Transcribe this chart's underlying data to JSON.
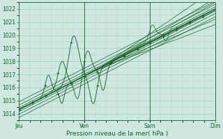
{
  "xlabel": "Pression niveau de la mer( hPa )",
  "ylim": [
    1013.5,
    1022.5
  ],
  "yticks": [
    1014,
    1015,
    1016,
    1017,
    1018,
    1019,
    1020,
    1021,
    1022
  ],
  "xtick_labels": [
    "Jeu",
    "Ven",
    "Sam",
    "Dim"
  ],
  "xtick_positions": [
    0.0,
    0.333,
    0.667,
    1.0
  ],
  "xlim": [
    0.0,
    1.0
  ],
  "bg_color": "#cce8e0",
  "grid_color": "#a0c8be",
  "line_color": "#1a5e2a",
  "dark_line_color": "#0d3d1a"
}
